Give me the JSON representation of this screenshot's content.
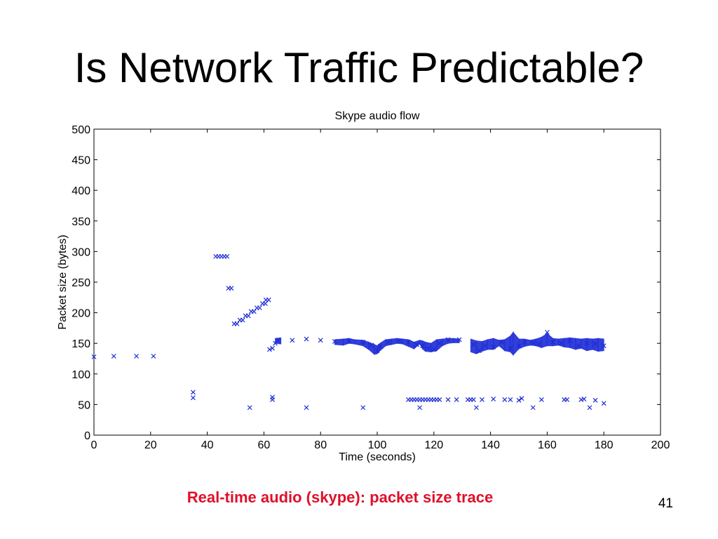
{
  "slide": {
    "title": "Is Network Traffic Predictable?",
    "caption": "Real-time audio (skype): packet size trace",
    "page_number": "41"
  },
  "colors": {
    "marker": "#1c2bd6",
    "caption": "#e0102a",
    "axis": "#000000"
  },
  "chart_data": {
    "type": "scatter",
    "title": "Skype audio flow",
    "xlabel": "Time (seconds)",
    "ylabel": "Packet size (bytes)",
    "xlim": [
      0,
      200
    ],
    "ylim": [
      0,
      500
    ],
    "xticks": [
      0,
      20,
      40,
      60,
      80,
      100,
      120,
      140,
      160,
      180,
      200
    ],
    "yticks": [
      0,
      50,
      100,
      150,
      200,
      250,
      300,
      350,
      400,
      450,
      500
    ],
    "marker": "x",
    "grid": false,
    "series": [
      {
        "points": [
          [
            0,
            128
          ],
          [
            7,
            129
          ],
          [
            15,
            129
          ],
          [
            21,
            129
          ],
          [
            35,
            70
          ],
          [
            35,
            61
          ],
          [
            43,
            292
          ],
          [
            44,
            292
          ],
          [
            45,
            292
          ],
          [
            46,
            292
          ],
          [
            47,
            292
          ],
          [
            47.5,
            240
          ],
          [
            48.5,
            240
          ],
          [
            49.5,
            182
          ],
          [
            50.5,
            182
          ],
          [
            51.5,
            188
          ],
          [
            52.5,
            188
          ],
          [
            53.5,
            195
          ],
          [
            54.5,
            195
          ],
          [
            55.5,
            202
          ],
          [
            56.5,
            202
          ],
          [
            57.5,
            208
          ],
          [
            58.5,
            208
          ],
          [
            59.5,
            215
          ],
          [
            60.5,
            215
          ],
          [
            60.7,
            221
          ],
          [
            61.7,
            221
          ],
          [
            55,
            45
          ],
          [
            75,
            45
          ],
          [
            95,
            45
          ],
          [
            62,
            140
          ],
          [
            63,
            142
          ],
          [
            63,
            62
          ],
          [
            63,
            58
          ],
          [
            64,
            150
          ],
          [
            65,
            155
          ],
          [
            70,
            155
          ],
          [
            75,
            157
          ],
          [
            80,
            155
          ],
          [
            85,
            153
          ],
          [
            90,
            154
          ],
          [
            95,
            152
          ],
          [
            98,
            147
          ],
          [
            100,
            138
          ],
          [
            101,
            145
          ],
          [
            104,
            152
          ],
          [
            108,
            154
          ],
          [
            111,
            152
          ],
          [
            114,
            148
          ],
          [
            116,
            146
          ],
          [
            118,
            142
          ],
          [
            120,
            140
          ],
          [
            122,
            150
          ],
          [
            125,
            156
          ],
          [
            129,
            156
          ],
          [
            134,
            148
          ],
          [
            136,
            138
          ],
          [
            138,
            146
          ],
          [
            141,
            144
          ],
          [
            144,
            152
          ],
          [
            147,
            142
          ],
          [
            150,
            146
          ],
          [
            152,
            152
          ],
          [
            155,
            151
          ],
          [
            157,
            149
          ],
          [
            160,
            168
          ],
          [
            162,
            152
          ],
          [
            165,
            150
          ],
          [
            168,
            154
          ],
          [
            171,
            146
          ],
          [
            174,
            150
          ],
          [
            177,
            149
          ],
          [
            180,
            146
          ],
          [
            111,
            58
          ],
          [
            112,
            58
          ],
          [
            113,
            58
          ],
          [
            114,
            58
          ],
          [
            115,
            58
          ],
          [
            116,
            58
          ],
          [
            117,
            58
          ],
          [
            118,
            58
          ],
          [
            119,
            58
          ],
          [
            120,
            58
          ],
          [
            121,
            58
          ],
          [
            122,
            58
          ],
          [
            115,
            45
          ],
          [
            125,
            58
          ],
          [
            128,
            58
          ],
          [
            132,
            58
          ],
          [
            133,
            58
          ],
          [
            134,
            58
          ],
          [
            135,
            45
          ],
          [
            137,
            58
          ],
          [
            141,
            59
          ],
          [
            145,
            58
          ],
          [
            147,
            58
          ],
          [
            150,
            57
          ],
          [
            151,
            60
          ],
          [
            155,
            45
          ],
          [
            158,
            58
          ],
          [
            166,
            58
          ],
          [
            167,
            58
          ],
          [
            172,
            58
          ],
          [
            173,
            59
          ],
          [
            175,
            45
          ],
          [
            177,
            57
          ],
          [
            180,
            52
          ]
        ]
      }
    ],
    "bands": [
      [
        64,
        150,
        158
      ],
      [
        66,
        149,
        159
      ],
      [
        70,
        150,
        158
      ],
      [
        75,
        151,
        159
      ],
      [
        80,
        149,
        157
      ],
      [
        85,
        148,
        156
      ],
      [
        88,
        147,
        157
      ],
      [
        90,
        150,
        158
      ],
      [
        92,
        149,
        156
      ],
      [
        95,
        146,
        155
      ],
      [
        97,
        140,
        152
      ],
      [
        99,
        132,
        148
      ],
      [
        100,
        133,
        146
      ],
      [
        101,
        138,
        150
      ],
      [
        103,
        146,
        156
      ],
      [
        105,
        148,
        157
      ],
      [
        107,
        150,
        158
      ],
      [
        109,
        149,
        157
      ],
      [
        111,
        145,
        156
      ],
      [
        113,
        141,
        152
      ],
      [
        115,
        149,
        155
      ],
      [
        116,
        141,
        154
      ],
      [
        117,
        137,
        152
      ],
      [
        119,
        136,
        150
      ],
      [
        121,
        138,
        156
      ],
      [
        123,
        146,
        157
      ],
      [
        125,
        150,
        158
      ],
      [
        127,
        151,
        158
      ],
      [
        129,
        151,
        157
      ],
      [
        133,
        136,
        157
      ],
      [
        135,
        133,
        154
      ],
      [
        137,
        137,
        153
      ],
      [
        139,
        140,
        156
      ],
      [
        141,
        140,
        158
      ],
      [
        143,
        146,
        155
      ],
      [
        145,
        138,
        156
      ],
      [
        147,
        136,
        162
      ],
      [
        148,
        131,
        168
      ],
      [
        150,
        141,
        157
      ],
      [
        152,
        145,
        157
      ],
      [
        154,
        147,
        155
      ],
      [
        156,
        146,
        157
      ],
      [
        158,
        143,
        160
      ],
      [
        160,
        146,
        166
      ],
      [
        162,
        146,
        158
      ],
      [
        164,
        147,
        157
      ],
      [
        166,
        144,
        158
      ],
      [
        168,
        143,
        159
      ],
      [
        170,
        140,
        158
      ],
      [
        172,
        142,
        157
      ],
      [
        174,
        138,
        158
      ],
      [
        176,
        140,
        157
      ],
      [
        178,
        137,
        158
      ],
      [
        180,
        138,
        157
      ]
    ]
  }
}
